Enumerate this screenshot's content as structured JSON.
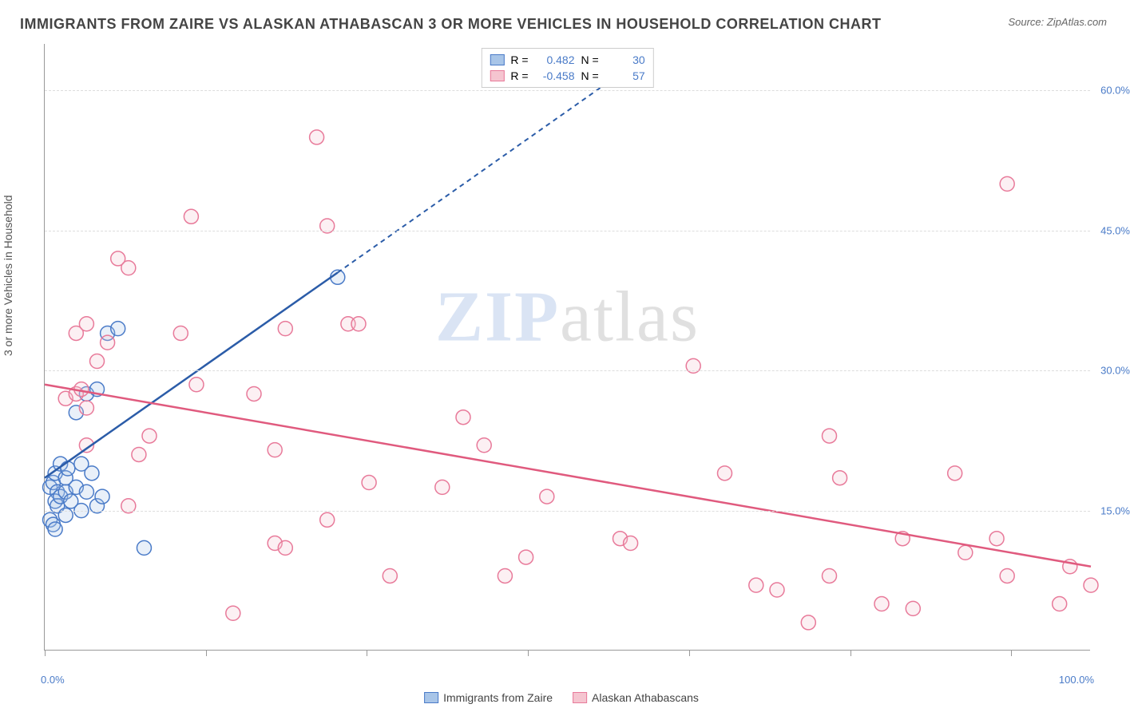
{
  "title": "IMMIGRANTS FROM ZAIRE VS ALASKAN ATHABASCAN 3 OR MORE VEHICLES IN HOUSEHOLD CORRELATION CHART",
  "source": "Source: ZipAtlas.com",
  "y_axis_label": "3 or more Vehicles in Household",
  "watermark": {
    "bold": "ZIP",
    "light": "atlas"
  },
  "chart": {
    "type": "scatter-correlation",
    "background_color": "#ffffff",
    "grid_color": "#dddddd",
    "axis_color": "#999999",
    "tick_label_color": "#4a7bc8",
    "tick_label_fontsize": 13,
    "title_fontsize": 18,
    "title_color": "#444444",
    "xlim": [
      0,
      100
    ],
    "ylim": [
      0,
      65
    ],
    "y_ticks": [
      15.0,
      30.0,
      45.0,
      60.0
    ],
    "y_tick_labels": [
      "15.0%",
      "30.0%",
      "45.0%",
      "60.0%"
    ],
    "x_ticks": [
      0,
      15.4,
      30.8,
      46.2,
      61.6,
      77,
      92.4
    ],
    "x_tick_labels": {
      "left": "0.0%",
      "right": "100.0%"
    },
    "marker_radius": 9,
    "marker_fill_opacity": 0.25,
    "marker_stroke_width": 1.5,
    "line_width": 2.5
  },
  "series": [
    {
      "name": "Immigrants from Zaire",
      "color_fill": "#a8c5e8",
      "color_stroke": "#4a7bc8",
      "line_color": "#2b5ca8",
      "R": "0.482",
      "N": "30",
      "trend": {
        "x1": 0,
        "y1": 18.5,
        "x2_solid": 28,
        "y2_solid": 40.5,
        "x2_dash": 54,
        "y2_dash": 61
      },
      "points": [
        [
          0.5,
          17.5
        ],
        [
          0.8,
          18
        ],
        [
          1,
          19
        ],
        [
          1.2,
          17
        ],
        [
          1.5,
          20
        ],
        [
          2,
          18.5
        ],
        [
          2.2,
          19.5
        ],
        [
          0.5,
          14
        ],
        [
          0.8,
          13.5
        ],
        [
          1,
          16
        ],
        [
          1.2,
          15.5
        ],
        [
          1.5,
          16.5
        ],
        [
          2,
          17
        ],
        [
          2.5,
          16
        ],
        [
          3,
          17.5
        ],
        [
          3.5,
          15
        ],
        [
          4,
          17
        ],
        [
          5,
          15.5
        ],
        [
          5.5,
          16.5
        ],
        [
          1,
          13
        ],
        [
          6,
          34
        ],
        [
          7,
          34.5
        ],
        [
          4,
          27.5
        ],
        [
          5,
          28
        ],
        [
          3,
          25.5
        ],
        [
          3.5,
          20
        ],
        [
          4.5,
          19
        ],
        [
          9.5,
          11
        ],
        [
          2,
          14.5
        ],
        [
          28,
          40
        ]
      ]
    },
    {
      "name": "Alaskan Athabascans",
      "color_fill": "#f5c5d0",
      "color_stroke": "#e87a9a",
      "line_color": "#e05a7e",
      "R": "-0.458",
      "N": "57",
      "trend": {
        "x1": 0,
        "y1": 28.5,
        "x2_solid": 100,
        "y2_solid": 9
      },
      "points": [
        [
          2,
          27
        ],
        [
          3,
          27.5
        ],
        [
          3.5,
          28
        ],
        [
          4,
          26
        ],
        [
          5,
          31
        ],
        [
          6,
          33
        ],
        [
          7,
          42
        ],
        [
          8,
          41
        ],
        [
          3,
          34
        ],
        [
          4,
          35
        ],
        [
          10,
          23
        ],
        [
          14.5,
          28.5
        ],
        [
          14,
          46.5
        ],
        [
          26,
          55
        ],
        [
          27,
          45.5
        ],
        [
          29,
          35
        ],
        [
          30,
          35
        ],
        [
          27,
          14
        ],
        [
          22,
          11.5
        ],
        [
          23,
          34.5
        ],
        [
          20,
          27.5
        ],
        [
          22,
          21.5
        ],
        [
          13,
          34
        ],
        [
          9,
          21
        ],
        [
          18,
          4
        ],
        [
          23,
          11
        ],
        [
          31,
          18
        ],
        [
          38,
          17.5
        ],
        [
          33,
          8
        ],
        [
          48,
          16.5
        ],
        [
          40,
          25
        ],
        [
          42,
          22
        ],
        [
          46,
          10
        ],
        [
          44,
          8
        ],
        [
          55,
          12
        ],
        [
          56,
          11.5
        ],
        [
          62,
          30.5
        ],
        [
          65,
          19
        ],
        [
          68,
          7
        ],
        [
          70,
          6.5
        ],
        [
          73,
          3
        ],
        [
          75,
          23
        ],
        [
          75,
          8
        ],
        [
          76,
          18.5
        ],
        [
          80,
          5
        ],
        [
          82,
          12
        ],
        [
          83,
          4.5
        ],
        [
          87,
          19
        ],
        [
          88,
          10.5
        ],
        [
          91,
          12
        ],
        [
          92,
          8
        ],
        [
          92,
          50
        ],
        [
          97,
          5
        ],
        [
          98,
          9
        ],
        [
          100,
          7
        ],
        [
          4,
          22
        ],
        [
          8,
          15.5
        ]
      ]
    }
  ],
  "legend_top_labels": {
    "R_prefix": "R =",
    "N_prefix": "N ="
  },
  "legend_bottom": [
    {
      "label": "Immigrants from Zaire"
    },
    {
      "label": "Alaskan Athabascans"
    }
  ]
}
